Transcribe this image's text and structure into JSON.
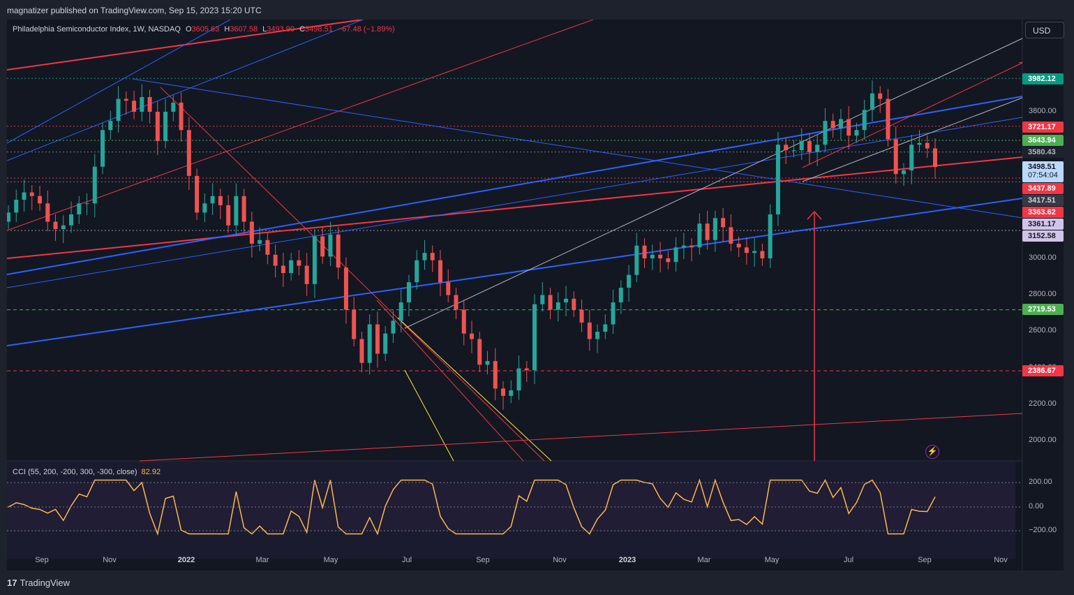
{
  "header": {
    "publisher_text": "magnatizer published on TradingView.com, Sep 15, 2023 15:20 UTC"
  },
  "legend": {
    "symbol": "Philadelphia Semiconductor Index, 1W, NASDAQ",
    "open_label": "O",
    "open": "3605.63",
    "high_label": "H",
    "high": "3607.58",
    "low_label": "L",
    "low": "3493.90",
    "close_label": "C",
    "close": "3498.51",
    "change": "−67.48 (−1.89%)"
  },
  "currency_button": "USD",
  "price_axis": {
    "ticks": [
      "3800.00",
      "3000.00",
      "2800.00",
      "2600.00",
      "2400.00",
      "2200.00",
      "2000.00"
    ],
    "labels": [
      {
        "text": "3982.12",
        "bg": "#089981",
        "fg": "#ffffff"
      },
      {
        "text": "3721.17",
        "bg": "#f23645",
        "fg": "#ffffff"
      },
      {
        "text": "3643.94",
        "bg": "#4caf50",
        "fg": "#ffffff"
      },
      {
        "text": "3580.43",
        "bg": "#1e222d",
        "fg": "#b2b5be"
      },
      {
        "text": "3498.51",
        "bg": "#bbd9fb",
        "fg": "#131722",
        "sub": "07:54:04"
      },
      {
        "text": "3437.89",
        "bg": "#f23645",
        "fg": "#ffffff"
      },
      {
        "text": "3417.51",
        "bg": "#363a45",
        "fg": "#d1d4dc"
      },
      {
        "text": "3363.62",
        "bg": "#f23645",
        "fg": "#ffffff"
      },
      {
        "text": "3361.17",
        "bg": "#d1c4e9",
        "fg": "#131722"
      },
      {
        "text": "3152.58",
        "bg": "#d1c4e9",
        "fg": "#131722"
      },
      {
        "text": "2719.53",
        "bg": "#4caf50",
        "fg": "#ffffff"
      },
      {
        "text": "2386.67",
        "bg": "#f23645",
        "fg": "#ffffff"
      }
    ]
  },
  "time_axis": {
    "ticks": [
      "Sep",
      "Nov",
      "2022",
      "Mar",
      "May",
      "Jul",
      "Sep",
      "Nov",
      "2023",
      "Mar",
      "May",
      "Jul",
      "Sep",
      "Nov"
    ]
  },
  "cci": {
    "legend": "CCI (55, 200, -200, 300, -300, close)",
    "value": "82.92",
    "ticks": [
      "200.00",
      "0.00",
      "−200.00"
    ]
  },
  "footer": {
    "brand": "TradingView",
    "mark": "17"
  },
  "colors": {
    "up": "#26a69a",
    "down": "#ef5350",
    "bg": "#131722",
    "cci_line": "#ffb74d"
  },
  "icons": [
    "lightning-icon",
    "tradingview-logo-icon"
  ],
  "chart_data": {
    "type": "candlestick",
    "timeframe": "1W",
    "x_range": [
      "2021-08",
      "2023-11"
    ],
    "y_range": [
      1900,
      4100
    ],
    "closes": [
      3250,
      3320,
      3360,
      3340,
      3300,
      3200,
      3160,
      3180,
      3240,
      3300,
      3300,
      3500,
      3700,
      3750,
      3870,
      3860,
      3800,
      3880,
      3800,
      3640,
      3800,
      3850,
      3700,
      3450,
      3250,
      3300,
      3340,
      3290,
      3180,
      3340,
      3200,
      3080,
      3100,
      3020,
      2960,
      2920,
      2990,
      2960,
      2860,
      3120,
      3010,
      3130,
      2950,
      2720,
      2560,
      2430,
      2640,
      2480,
      2590,
      2660,
      2760,
      2870,
      2990,
      3030,
      2990,
      2870,
      2800,
      2720,
      2590,
      2560,
      2420,
      2440,
      2290,
      2250,
      2280,
      2400,
      2390,
      2750,
      2800,
      2720,
      2760,
      2780,
      2720,
      2650,
      2560,
      2600,
      2640,
      2760,
      2840,
      2910,
      3070,
      3000,
      3020,
      3000,
      2980,
      3060,
      3070,
      3060,
      3190,
      3100,
      3220,
      3170,
      3080,
      3060,
      3030,
      3040,
      3000,
      3240,
      3620,
      3590,
      3590,
      3640,
      3580,
      3620,
      3750,
      3710,
      3760,
      3670,
      3700,
      3810,
      3900,
      3870,
      3650,
      3460,
      3480,
      3620,
      3630,
      3600,
      3498.51
    ],
    "cci_range": [
      -300,
      300
    ],
    "cci_current": 82.92,
    "horizontal_levels": [
      3982.12,
      3721.17,
      3643.94,
      3580.43,
      3437.89,
      3417.51,
      3152.58,
      2719.53,
      2386.67
    ],
    "annotations": [
      {
        "type": "vertical-arrow",
        "date": "2023-05",
        "from": 1900,
        "to": 3560,
        "color": "#f23645"
      }
    ]
  }
}
